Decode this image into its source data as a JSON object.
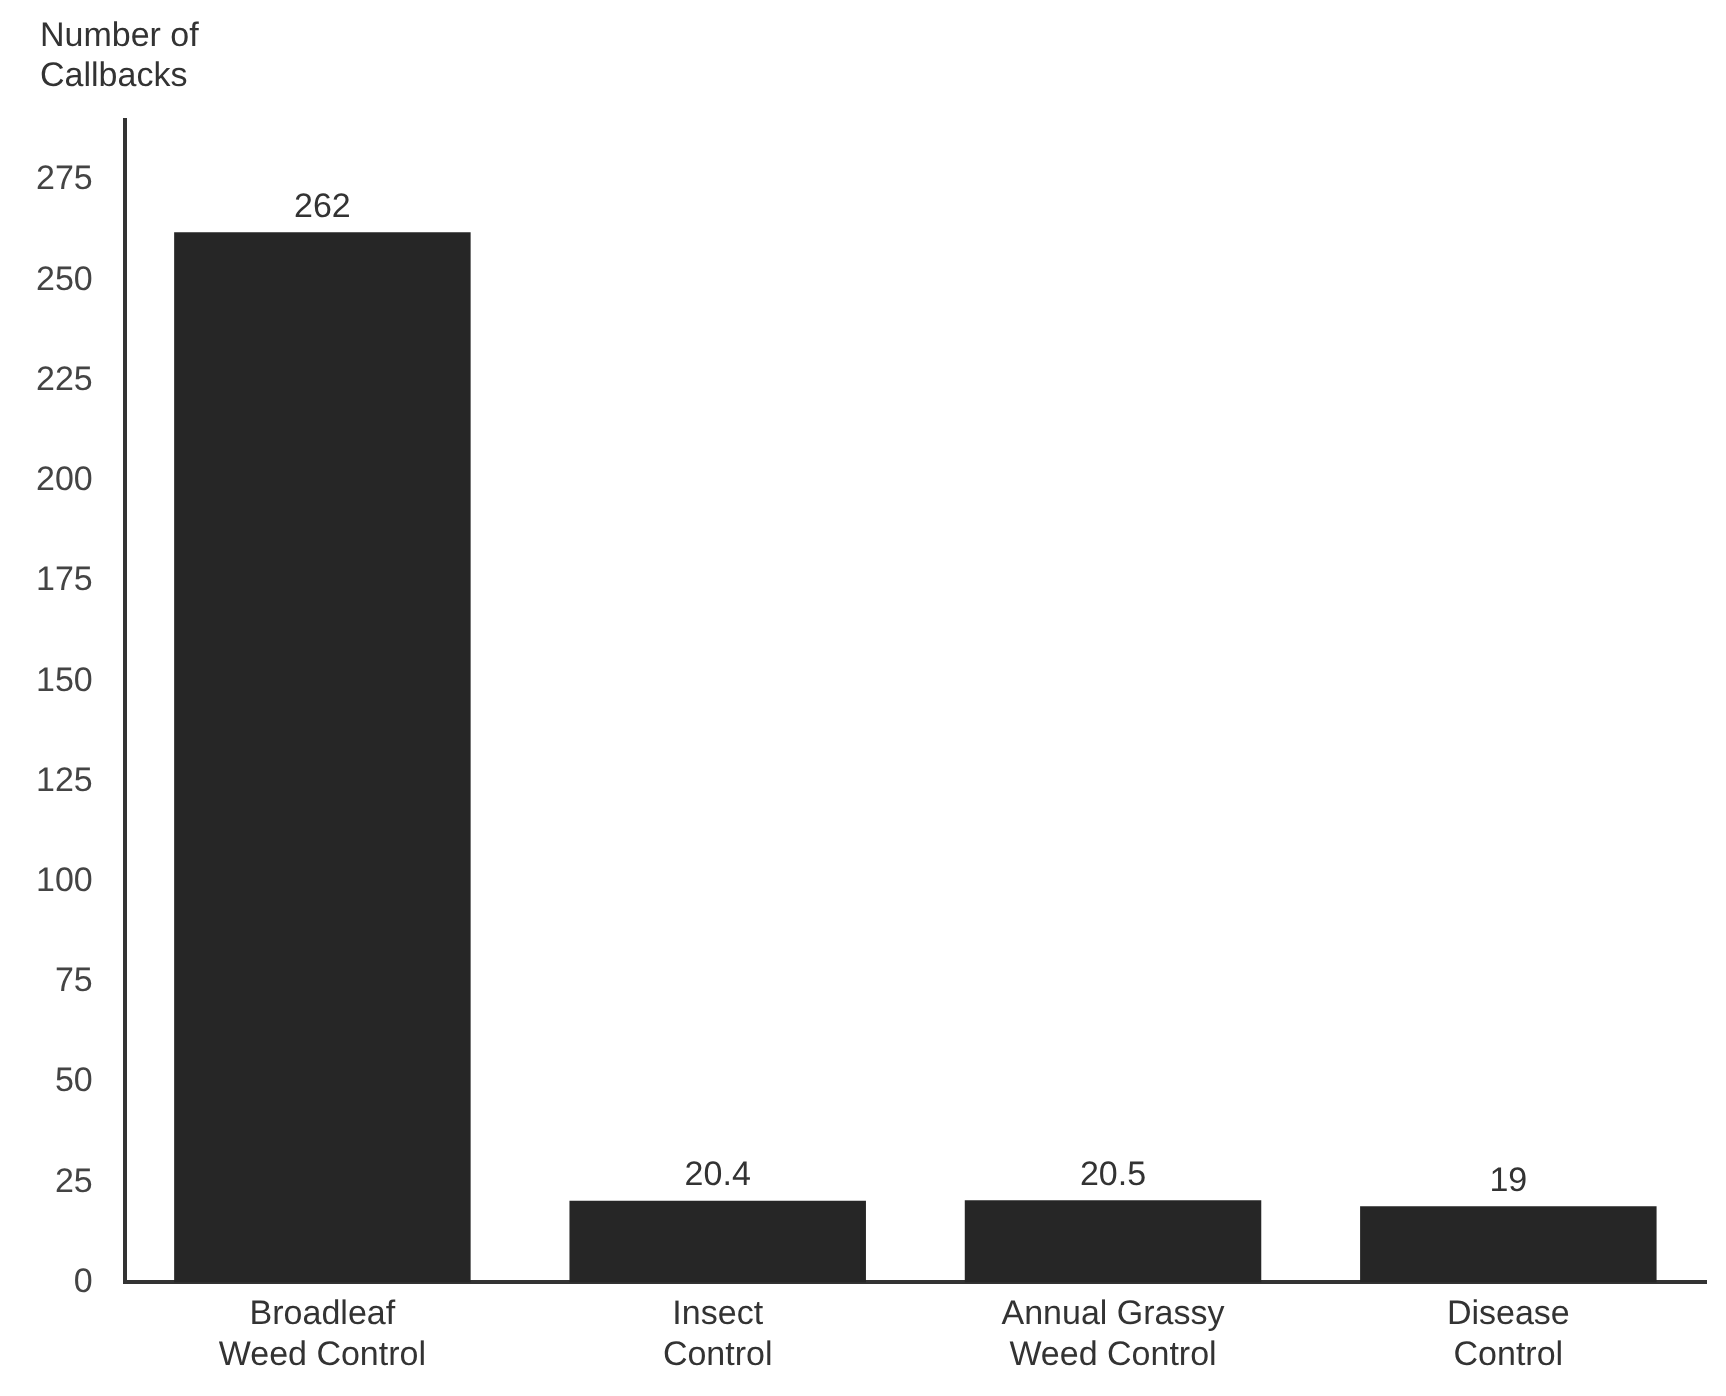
{
  "chart_data": {
    "type": "bar",
    "ylabel": "Number of Callbacks",
    "categories": [
      "Broadleaf Weed Control",
      "Insect Control",
      "Annual Grassy Weed Control",
      "Disease Control"
    ],
    "values": [
      262,
      20.4,
      20.5,
      19
    ],
    "color": "#262626",
    "ylim": [
      0,
      290
    ],
    "yticks": [
      0,
      25,
      50,
      75,
      100,
      125,
      150,
      175,
      200,
      225,
      250,
      275
    ],
    "grid": false,
    "legend": false,
    "data_labels": true
  }
}
